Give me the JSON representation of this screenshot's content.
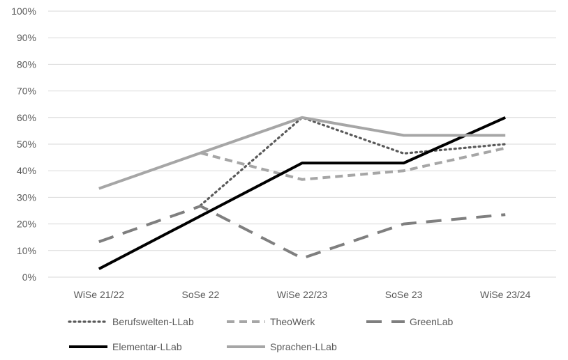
{
  "chart_data": {
    "type": "line",
    "categories": [
      "WiSe 21/22",
      "SoSe 22",
      "WiSe 22/23",
      "SoSe 23",
      "WiSe 23/24"
    ],
    "ylim": [
      0,
      100
    ],
    "ytick_step": 10,
    "ytick_suffix": "%",
    "grid": true,
    "legend_position": "bottom",
    "series": [
      {
        "name": "Berufswelten-LLab",
        "values": [
          null,
          27,
          60,
          46.5,
          50
        ],
        "color": "#595959",
        "style": "dotted"
      },
      {
        "name": "TheoWerk",
        "values": [
          null,
          46.7,
          36.7,
          40,
          48.5
        ],
        "color": "#a6a6a6",
        "style": "dashed"
      },
      {
        "name": "GreenLab",
        "values": [
          13.3,
          26.7,
          7.1,
          20,
          23.5
        ],
        "color": "#7f7f7f",
        "style": "longdash"
      },
      {
        "name": "Elementar-LLab",
        "values": [
          3.1,
          23,
          42.9,
          42.9,
          60
        ],
        "color": "#000000",
        "style": "solid"
      },
      {
        "name": "Sprachen-LLab",
        "values": [
          33.3,
          46.7,
          60,
          53.3,
          53.3
        ],
        "color": "#a6a6a6",
        "style": "solid"
      }
    ]
  }
}
